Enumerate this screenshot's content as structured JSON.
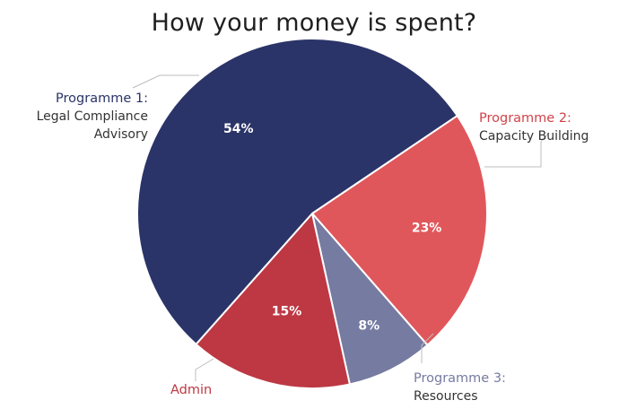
{
  "title": "How your money is spent?",
  "chart_data": {
    "type": "pie",
    "slices": [
      {
        "key": "p1",
        "value": 54,
        "label": "54%",
        "color": "#2a3468",
        "category_head": "Programme 1:",
        "category_lines": [
          "Legal Compliance",
          "Advisory"
        ],
        "head_color": "#2a3468"
      },
      {
        "key": "p2",
        "value": 23,
        "label": "23%",
        "color": "#e0575b",
        "category_head": "Programme 2:",
        "category_lines": [
          "Capacity Building"
        ],
        "head_color": "#d0434a"
      },
      {
        "key": "p3",
        "value": 8,
        "label": "8%",
        "color": "#767ba1",
        "category_head": "Programme 3:",
        "category_lines": [
          "Resources"
        ],
        "head_color": "#767ba1"
      },
      {
        "key": "admin",
        "value": 15,
        "label": "15%",
        "color": "#bd3843",
        "category_head": "Admin",
        "category_lines": [],
        "head_color": "#bd3843"
      }
    ]
  }
}
